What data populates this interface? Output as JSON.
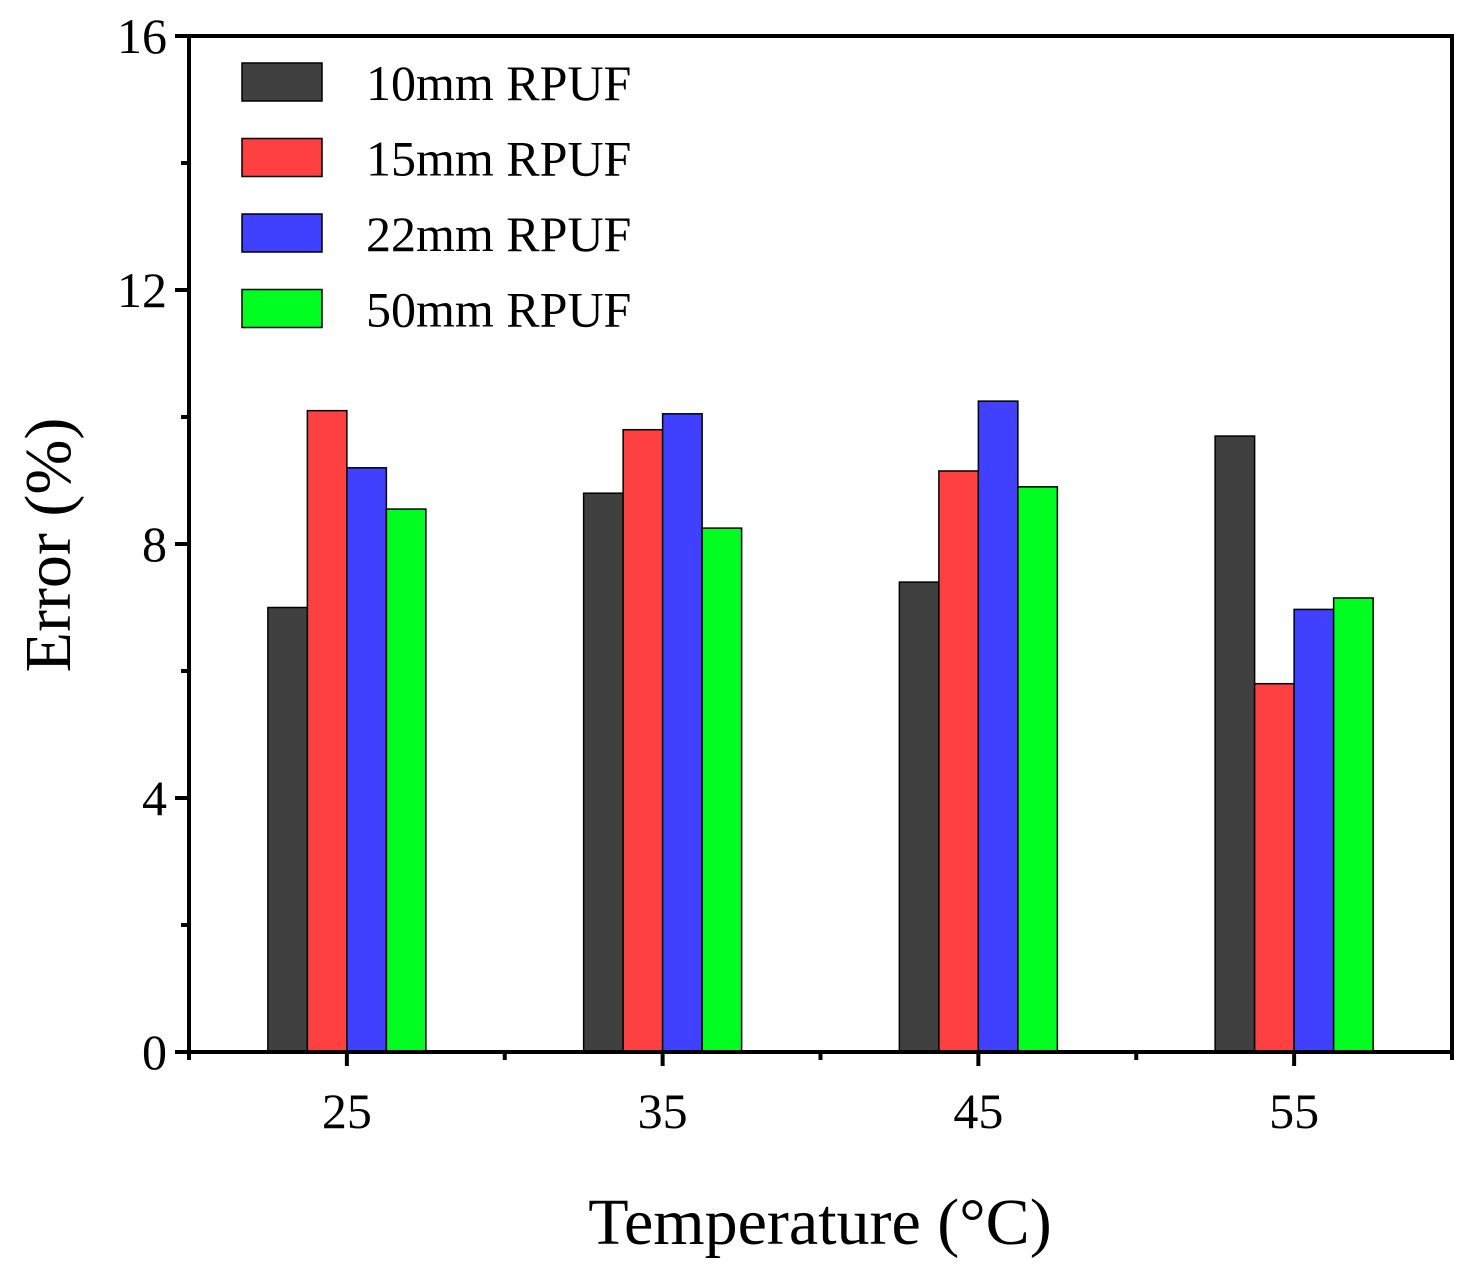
{
  "chart_data": {
    "type": "bar",
    "title": "",
    "xlabel": "Temperature (°C)",
    "ylabel": "Error (%)",
    "categories": [
      "25",
      "35",
      "45",
      "55"
    ],
    "ylim": [
      0,
      16
    ],
    "yticks": [
      "0",
      "4",
      "8",
      "12",
      "16"
    ],
    "grid": false,
    "legend_position": "top-left",
    "series": [
      {
        "name": "10mm RPUF",
        "color": "#404040",
        "values": [
          7.0,
          8.8,
          7.4,
          9.7
        ]
      },
      {
        "name": "15mm RPUF",
        "color": "#ff4040",
        "values": [
          10.1,
          9.8,
          9.15,
          5.8
        ]
      },
      {
        "name": "22mm RPUF",
        "color": "#4040ff",
        "values": [
          9.2,
          10.05,
          10.25,
          6.97
        ]
      },
      {
        "name": "50mm RPUF",
        "color": "#00ff20",
        "values": [
          8.55,
          8.25,
          8.9,
          7.15
        ]
      }
    ]
  }
}
